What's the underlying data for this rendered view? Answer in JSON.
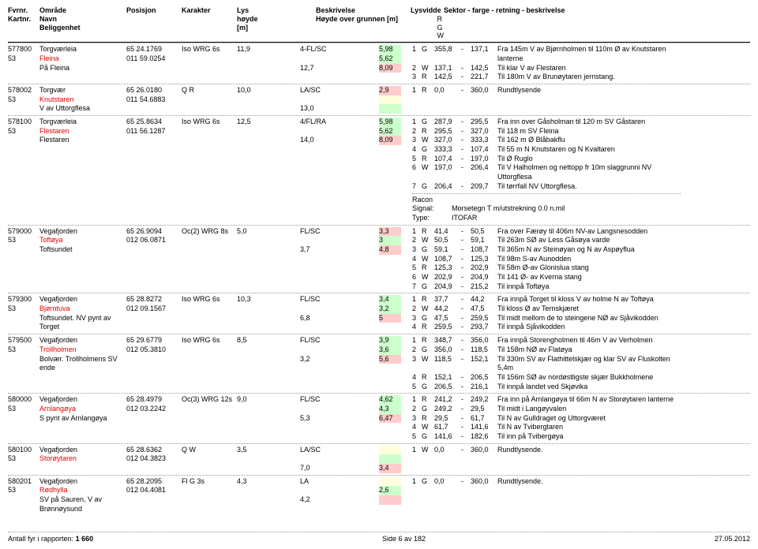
{
  "header": {
    "fvrnr": "Fvrnr.",
    "kartnr": "Kartnr.",
    "omrade": "Område",
    "navn": "Navn",
    "beliggenhet": "Beliggenhet",
    "posisjon": "Posisjon",
    "karakter": "Karakter",
    "lys": "Lys\nhøyde\n[m]",
    "beskrivelse": "Beskrivelse",
    "hoyde": "Høyde over grunnen [m]",
    "lysvidde": "Lysvidde",
    "rgw": "R\nG\nW",
    "sektor": "Sektor - farge - retning - beskrivelse"
  },
  "entries": [
    {
      "id": "577800",
      "kart": "53",
      "area": "Torgværleia",
      "name": "Fleina",
      "loc": "På Fleina",
      "pos1": "65 24.1769",
      "pos2": "011 59.0254",
      "kar": "Iso WRG 6s",
      "lysh": "11,9",
      "besk": "4-FL/SC",
      "hoy": "12,7",
      "lv": [
        [
          "5,98",
          "g"
        ],
        [
          "5,62",
          "g"
        ],
        [
          "8,09",
          "r"
        ]
      ],
      "sek": [
        [
          "1",
          "G",
          "355,8",
          "-",
          "137,1",
          "Fra 145m V av Bjørnholmen til 110m Ø av Knutstaren lanterne"
        ],
        [
          "2",
          "W",
          "137,1",
          "-",
          "142,5",
          "Til klar V av Flestaren"
        ],
        [
          "3",
          "R",
          "142,5",
          "-",
          "221,7",
          "Til 180m V av Brunøytaren jernstang."
        ]
      ]
    },
    {
      "id": "578002",
      "kart": "53",
      "area": "Torgvær",
      "name": "Knutstaren",
      "loc": "V av Uttorgflesa",
      "pos1": "65 26.0180",
      "pos2": "011 54.6883",
      "kar": "Q R",
      "lysh": "10,0",
      "besk": "LA/SC",
      "hoy": "13,0",
      "lv": [
        [
          "2,9",
          "r"
        ],
        [
          "",
          "w"
        ],
        [
          "",
          "g"
        ]
      ],
      "sek": [
        [
          "1",
          "R",
          "0,0",
          "-",
          "360,0",
          "Rundtlysende"
        ]
      ]
    },
    {
      "id": "578100",
      "kart": "53",
      "area": "Torgværleia",
      "name": "Flestaren",
      "loc": "Flestaren",
      "pos1": "65 25.8634",
      "pos2": "011 56.1287",
      "kar": "Iso WRG 6s",
      "lysh": "12,5",
      "besk": "4/FL/RA",
      "hoy": "14,0",
      "lv": [
        [
          "5,98",
          "g"
        ],
        [
          "5,62",
          "g"
        ],
        [
          "8,09",
          "r"
        ]
      ],
      "sek": [
        [
          "1",
          "G",
          "287,9",
          "-",
          "295,5",
          "Fra inn over Gåsholman til 120 m SV Gåstaren"
        ],
        [
          "2",
          "R",
          "295,5",
          "-",
          "327,0",
          "Til 118 m SV Fleina"
        ],
        [
          "3",
          "W",
          "327,0",
          "-",
          "333,3",
          "Til 162 m Ø Blåbakflu"
        ],
        [
          "4",
          "G",
          "333,3",
          "-",
          "107,4",
          "Til 55 m N Knutstaren og N Kvaltaren"
        ],
        [
          "5",
          "R",
          "107,4",
          "-",
          "197,0",
          "Til Ø Ruglo"
        ],
        [
          "6",
          "W",
          "197,0",
          "-",
          "206,4",
          "Til V Halholmen og nettopp fr 10m slaggrunni NV Uttorgflesa"
        ],
        [
          "7",
          "G",
          "206,4",
          "-",
          "209,7",
          "Til tørrfall NV Uttorgflesa."
        ]
      ],
      "racon": {
        "l1": "Racon",
        "l2": "Signal:",
        "l3": "Type:",
        "v2": "Morsetegn T m/utstrekning 0.0 n.mil",
        "v3": "ITOFAR"
      }
    },
    {
      "id": "579000",
      "kart": "53",
      "area": "Vegafjorden",
      "name": "Toftøya",
      "loc": "Toftsundet",
      "pos1": "65 26.9094",
      "pos2": "012 06.0871",
      "kar": "Oc(2) WRG 8s",
      "lysh": "5,0",
      "besk": "FL/SC",
      "hoy": "3,7",
      "lv": [
        [
          "3,3",
          "r"
        ],
        [
          "3",
          "g"
        ],
        [
          "4,8",
          "r"
        ]
      ],
      "sek": [
        [
          "1",
          "R",
          "41,4",
          "-",
          "50,5",
          "Fra over Færøy til 406m NV-av Langsnesodden"
        ],
        [
          "2",
          "W",
          "50,5",
          "-",
          "59,1",
          "Til 263m SØ av Less Gåsøya varde"
        ],
        [
          "3",
          "G",
          "59,1",
          "-",
          "108,7",
          "Til 365m N av Steinøyan og N av Aspøyflua"
        ],
        [
          "4",
          "W",
          "108,7",
          "-",
          "125,3",
          "Til 98m S-av Aunodden"
        ],
        [
          "5",
          "R",
          "125,3",
          "-",
          "202,9",
          "Til 58m Ø-av Glonislua stang"
        ],
        [
          "6",
          "W",
          "202,9",
          "-",
          "204,9",
          "Til 141 Ø- av Kverna stang"
        ],
        [
          "7",
          "G",
          "204,9",
          "-",
          "215,2",
          "Til innpå Toftøya"
        ]
      ]
    },
    {
      "id": "579300",
      "kart": "53",
      "area": "Vegafjorden",
      "name": "Bjørntuva",
      "loc": "Toftsundet. NV pynt av Torget",
      "pos1": "65 28.8272",
      "pos2": "012 09.1567",
      "kar": "Iso WRG 6s",
      "lysh": "10,3",
      "besk": "FL/SC",
      "hoy": "6,8",
      "lv": [
        [
          "3,4",
          "g"
        ],
        [
          "3,2",
          "g"
        ],
        [
          "5",
          "r"
        ]
      ],
      "sek": [
        [
          "1",
          "R",
          "37,7",
          "-",
          "44,2",
          "Fra innpå Torget til kloss V av holme N av Toftøya"
        ],
        [
          "2",
          "W",
          "44,2",
          "-",
          "47,5",
          "Til kloss Ø av Ternskjæret"
        ],
        [
          "3",
          "G",
          "47,5",
          "-",
          "259,5",
          "Til midt mellom de to steingene NØ av Sjåvikodden"
        ],
        [
          "4",
          "R",
          "259,5",
          "-",
          "293,7",
          "Til innpå Sjåvikodden"
        ]
      ]
    },
    {
      "id": "579500",
      "kart": "53",
      "area": "Vegafjorden",
      "name": "Trollholmen",
      "loc": "Bolvær. Trollholmens SV ende",
      "pos1": "65 29.6779",
      "pos2": "012 05.3810",
      "kar": "Iso WRG 6s",
      "lysh": "8,5",
      "besk": "FL/SC",
      "hoy": "3,2",
      "lv": [
        [
          "3,9",
          "g"
        ],
        [
          "3,6",
          "g"
        ],
        [
          "5,6",
          "r"
        ]
      ],
      "sek": [
        [
          "1",
          "R",
          "348,7",
          "-",
          "356,0",
          "Fra innpå Storengholmen til 46m V av Verholmen"
        ],
        [
          "2",
          "G",
          "356,0",
          "-",
          "118,5",
          "Til 158m NØ av Flatøya"
        ],
        [
          "3",
          "W",
          "118,5",
          "-",
          "152,1",
          "Til 330m SV av Flathittelskjær og klar SV av Fluskolten 5,4m"
        ],
        [
          "4",
          "R",
          "152,1",
          "-",
          "206,5",
          "Til 156m SØ av nordøstligste skjær Bukkholmene"
        ],
        [
          "5",
          "G",
          "206,5",
          "-",
          "216,1",
          "Til innpå landet ved Skjøvika"
        ]
      ]
    },
    {
      "id": "580000",
      "kart": "53",
      "area": "Vegafjorden",
      "name": "Arnlangøya",
      "loc": "S pynt av Arnlangøya",
      "pos1": "65 28.4979",
      "pos2": "012 03.2242",
      "kar": "Oc(3) WRG 12s",
      "lysh": "9,0",
      "besk": "FL/SC",
      "hoy": "5,3",
      "lv": [
        [
          "4,62",
          "g"
        ],
        [
          "4,3",
          "g"
        ],
        [
          "6,47",
          "r"
        ]
      ],
      "sek": [
        [
          "1",
          "R",
          "241,2",
          "-",
          "249,2",
          "Fra inn på Arnlangøya til 66m N av Storøytaren lanterne"
        ],
        [
          "2",
          "G",
          "249,2",
          "-",
          "29,5",
          "Til midt i Langøyvalen"
        ],
        [
          "3",
          "R",
          "29,5",
          "-",
          "61,7",
          "Til N av Gulldraget og Uttorgværet"
        ],
        [
          "4",
          "W",
          "61,7",
          "-",
          "141,6",
          "Til N av Tvibergtaren"
        ],
        [
          "5",
          "G",
          "141,6",
          "-",
          "182,6",
          "Til inn på Tvibergøya"
        ]
      ]
    },
    {
      "id": "580100",
      "kart": "53",
      "area": "Vegafjorden",
      "name": "Storøytaren",
      "loc": "",
      "pos1": "65 28.6362",
      "pos2": "012 04.3823",
      "kar": "Q W",
      "lysh": "3,5",
      "besk": "LA/SC",
      "hoy": "7,0",
      "lv": [
        [
          "",
          "w"
        ],
        [
          "",
          "g"
        ],
        [
          "3,4",
          "r"
        ]
      ],
      "sek": [
        [
          "1",
          "W",
          "0,0",
          "-",
          "360,0",
          "Rundtlysende."
        ]
      ]
    },
    {
      "id": "580201",
      "kart": "53",
      "area": "Vegafjorden",
      "name": "Rødhylla",
      "loc": "SV på Sauren, V av Brønnøysund",
      "pos1": "65 28.2095",
      "pos2": "012 04.4081",
      "kar": "Fl G 3s",
      "lysh": "4,3",
      "besk": "LA",
      "hoy": "4,2",
      "lv": [
        [
          "",
          "w"
        ],
        [
          "2,6",
          "g"
        ],
        [
          "",
          "r"
        ]
      ],
      "sek": [
        [
          "1",
          "G",
          "0,0",
          "-",
          "360,0",
          "Rundtlysende."
        ]
      ]
    }
  ],
  "footer": {
    "left_label": "Antall fyr i rapporten:",
    "left_value": "1 660",
    "center": "Side 6 av 182",
    "right": "27.05.2012"
  }
}
